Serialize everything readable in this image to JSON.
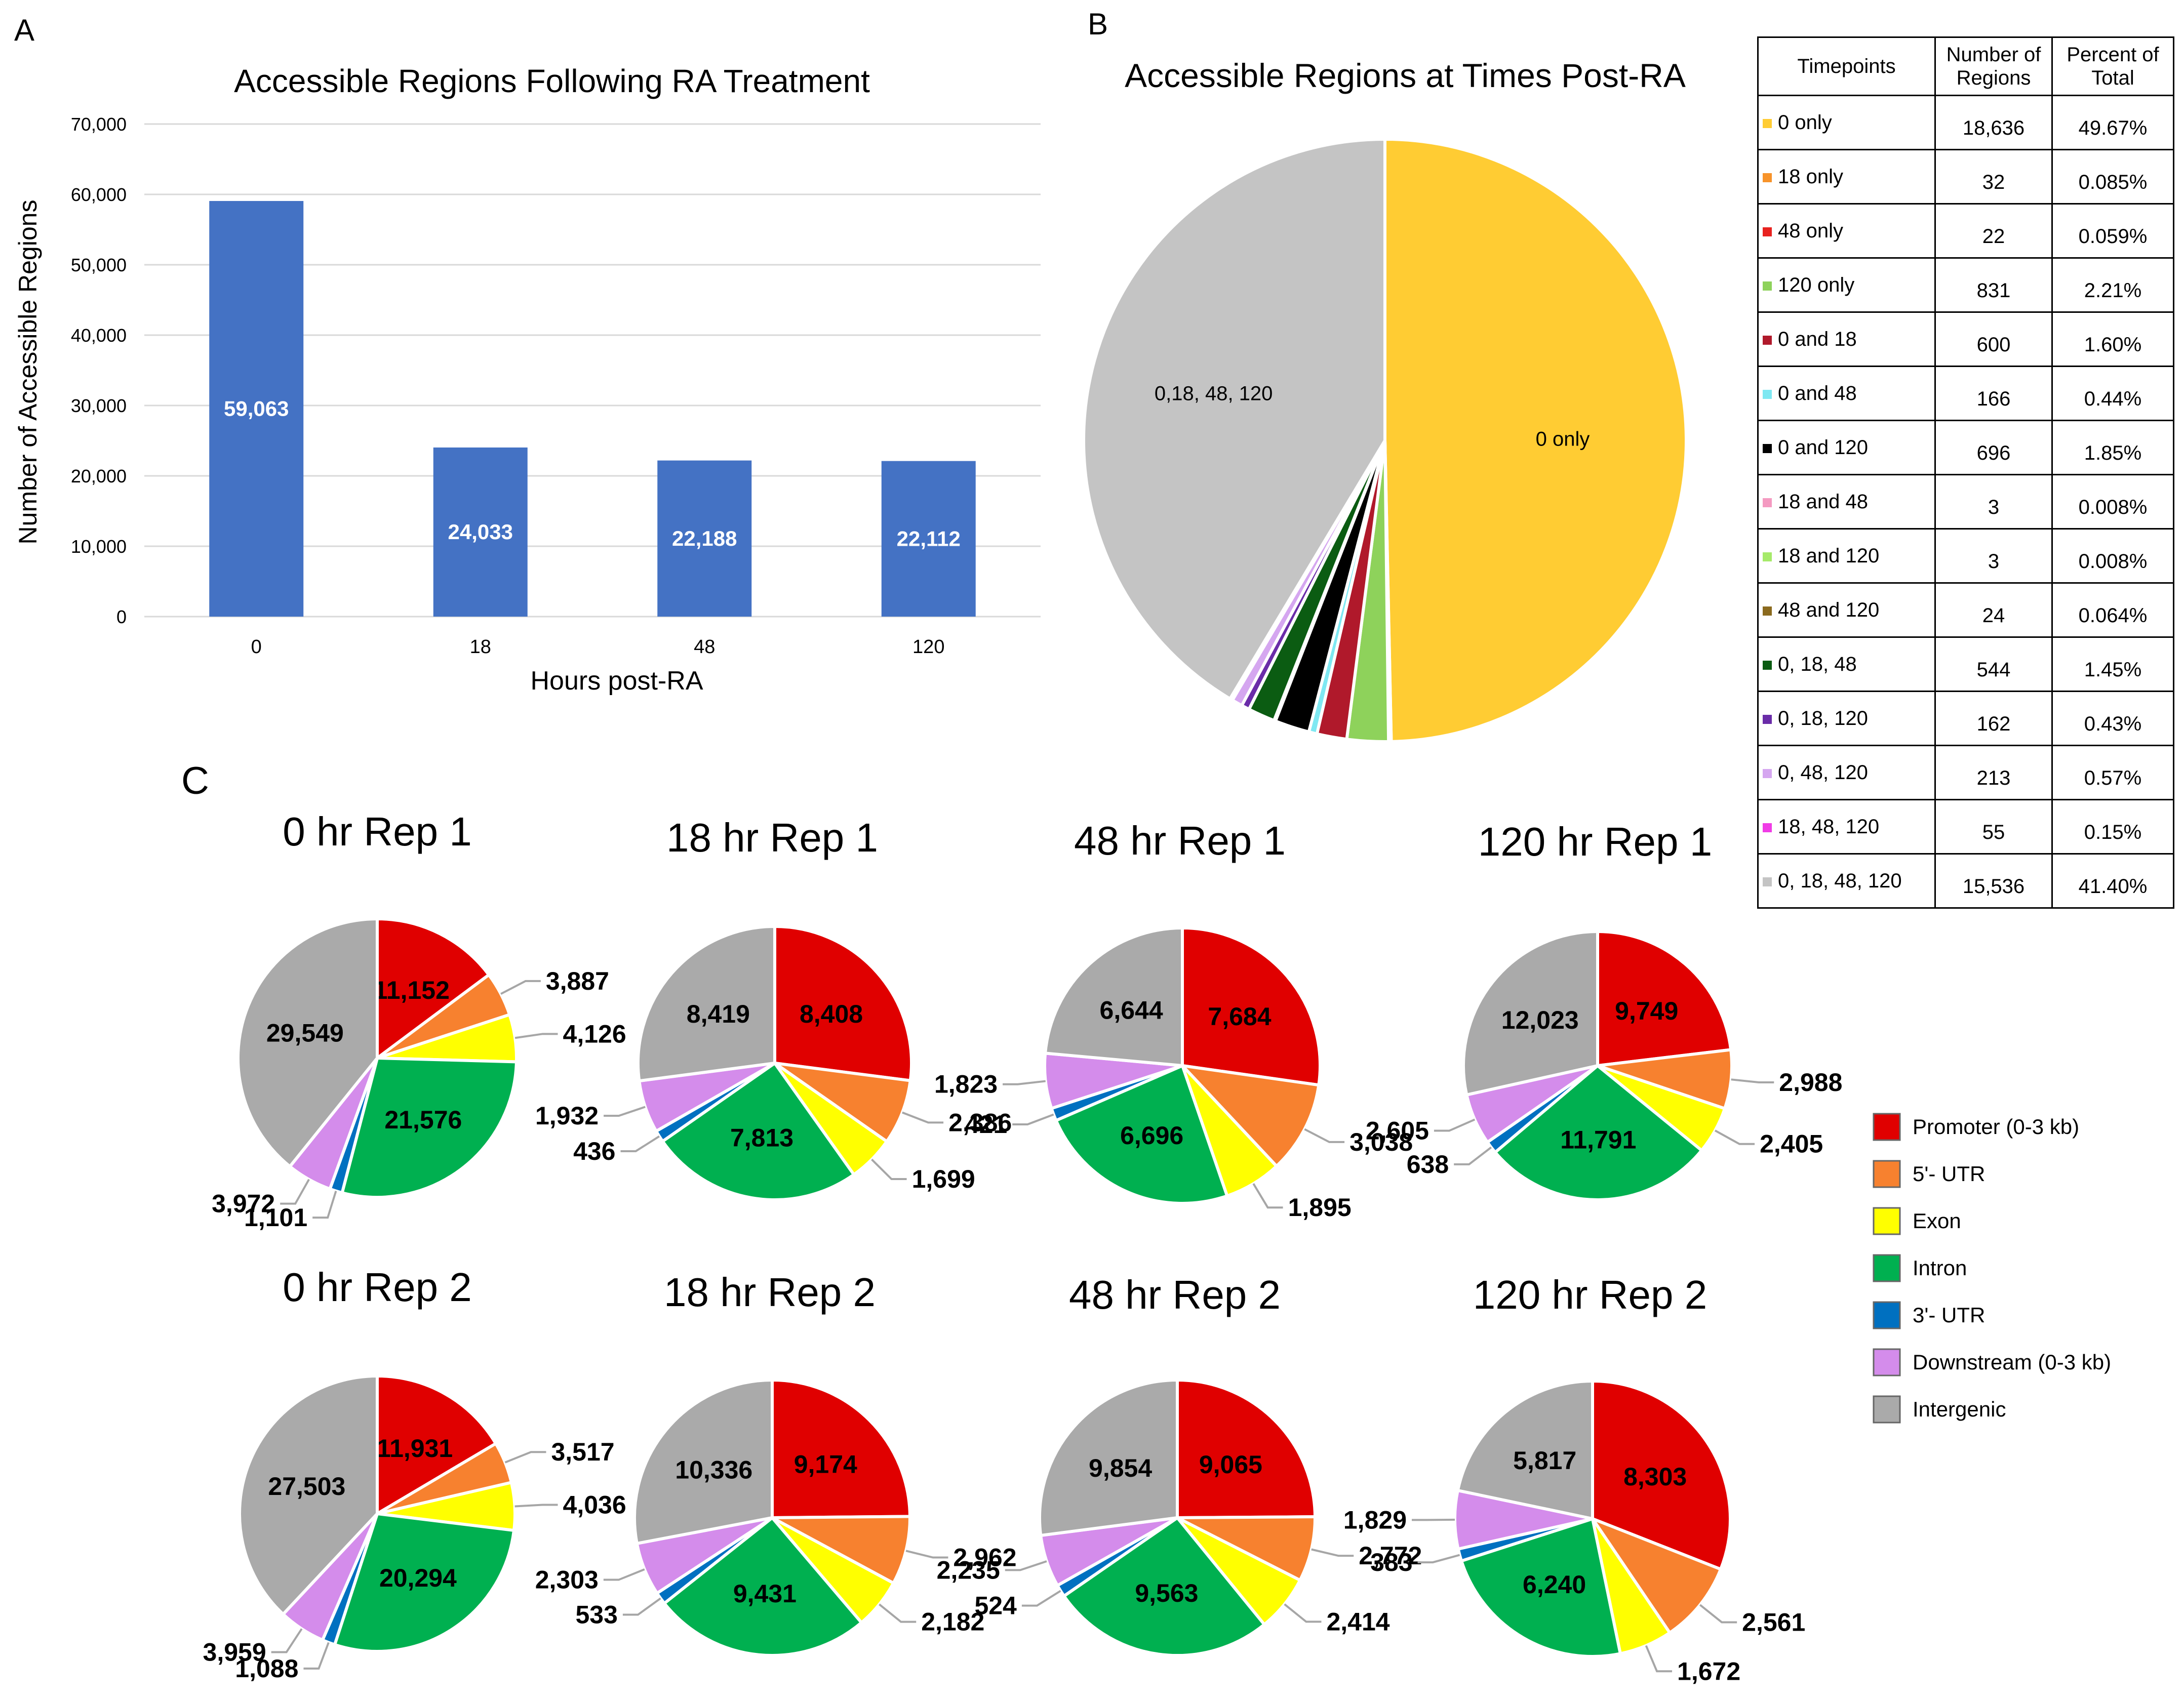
{
  "panels": {
    "a": "A",
    "b": "B",
    "c": "C"
  },
  "chart_data": [
    {
      "type": "bar",
      "title": "Accessible Regions Following RA Treatment",
      "xlabel": "Hours post-RA",
      "ylabel": "Number of Accessible Regions",
      "categories": [
        "0",
        "18",
        "48",
        "120"
      ],
      "values": [
        59063,
        24033,
        22188,
        22112
      ],
      "value_labels": [
        "59,063",
        "24,033",
        "22,188",
        "22,112"
      ],
      "ylim": [
        0,
        70000
      ],
      "yticks": [
        0,
        10000,
        20000,
        30000,
        40000,
        50000,
        60000,
        70000
      ],
      "ytick_labels": [
        "0",
        "10,000",
        "20,000",
        "30,000",
        "40,000",
        "50,000",
        "60,000",
        "70,000"
      ],
      "bar_color": "#4472C4",
      "grid": true
    },
    {
      "type": "pie",
      "title": "Accessible Regions at Times Post-RA",
      "slices": [
        {
          "label": "0 only",
          "value": 18636,
          "color": "#FFCC33",
          "shown": "0 only"
        },
        {
          "label": "18 only",
          "value": 32,
          "color": "#F7932A",
          "shown": ""
        },
        {
          "label": "48 only",
          "value": 22,
          "color": "#E8221F",
          "shown": ""
        },
        {
          "label": "120 only",
          "value": 831,
          "color": "#8ED25B",
          "shown": ""
        },
        {
          "label": "0 and 18",
          "value": 600,
          "color": "#B0192B",
          "shown": ""
        },
        {
          "label": "0 and 48",
          "value": 166,
          "color": "#7EE8F2",
          "shown": ""
        },
        {
          "label": "0 and 120",
          "value": 696,
          "color": "#000000",
          "shown": ""
        },
        {
          "label": "18 and 48",
          "value": 3,
          "color": "#F49AC1",
          "shown": ""
        },
        {
          "label": "18 and 120",
          "value": 3,
          "color": "#A6EA6A",
          "shown": ""
        },
        {
          "label": "48 and 120",
          "value": 24,
          "color": "#8B6A1E",
          "shown": ""
        },
        {
          "label": "0, 18, 48",
          "value": 544,
          "color": "#0B5C12",
          "shown": ""
        },
        {
          "label": "0, 18, 120",
          "value": 162,
          "color": "#6A2CA8",
          "shown": ""
        },
        {
          "label": "0, 48, 120",
          "value": 213,
          "color": "#D5A6F0",
          "shown": ""
        },
        {
          "label": "18, 48, 120",
          "value": 55,
          "color": "#F03CE6",
          "shown": ""
        },
        {
          "label": "0, 18, 48, 120",
          "value": 15536,
          "color": "#C4C4C4",
          "shown": "0,18, 48, 120"
        }
      ]
    },
    {
      "type": "pie",
      "subplots": [
        {
          "title": "0 hr Rep 1",
          "values": [
            11152,
            3887,
            4126,
            21576,
            1101,
            3972,
            29549
          ],
          "labels": [
            "11,152",
            "3,887",
            "4,126",
            "21,576",
            "1,101",
            "3,972",
            "29,549"
          ]
        },
        {
          "title": "18 hr Rep 1",
          "values": [
            8408,
            2386,
            1699,
            7813,
            436,
            1932,
            8419
          ],
          "labels": [
            "8,408",
            "2,386",
            "1,699",
            "7,813",
            "436",
            "1,932",
            "8,419"
          ]
        },
        {
          "title": "48 hr Rep 1",
          "values": [
            7684,
            3038,
            1895,
            6696,
            421,
            1823,
            6644
          ],
          "labels": [
            "7,684",
            "3,038",
            "1,895",
            "6,696",
            "421",
            "1,823",
            "6,644"
          ]
        },
        {
          "title": "120 hr Rep 1",
          "values": [
            9749,
            2988,
            2405,
            11791,
            638,
            2605,
            12023
          ],
          "labels": [
            "9,749",
            "2,988",
            "2,405",
            "11,791",
            "638",
            "2,605",
            "12,023"
          ]
        },
        {
          "title": "0 hr Rep 2",
          "values": [
            11931,
            3517,
            4036,
            20294,
            1088,
            3959,
            27503
          ],
          "labels": [
            "11,931",
            "3,517",
            "4,036",
            "20,294",
            "1,088",
            "3,959",
            "27,503"
          ]
        },
        {
          "title": "18 hr Rep 2",
          "values": [
            9174,
            2962,
            2182,
            9431,
            533,
            2303,
            10336
          ],
          "labels": [
            "9,174",
            "2,962",
            "2,182",
            "9,431",
            "533",
            "2,303",
            "10,336"
          ]
        },
        {
          "title": "48 hr Rep 2",
          "values": [
            9065,
            2772,
            2414,
            9563,
            524,
            2235,
            9854
          ],
          "labels": [
            "9,065",
            "2,772",
            "2,414",
            "9,563",
            "524",
            "2,235",
            "9,854"
          ]
        },
        {
          "title": "120 hr Rep 2",
          "values": [
            8303,
            2561,
            1672,
            6240,
            383,
            1829,
            5817
          ],
          "labels": [
            "8,303",
            "2,561",
            "1,672",
            "6,240",
            "383",
            "1,829",
            "5,817"
          ]
        }
      ],
      "legend": [
        {
          "label": "Promoter (0-3 kb)",
          "color": "#E00000"
        },
        {
          "label": "5'- UTR",
          "color": "#F7812F"
        },
        {
          "label": "Exon",
          "color": "#FFFF00"
        },
        {
          "label": "Intron",
          "color": "#00B050"
        },
        {
          "label": "3'- UTR",
          "color": "#0070C0"
        },
        {
          "label": "Downstream (0-3 kb)",
          "color": "#D48CEB"
        },
        {
          "label": "Intergenic",
          "color": "#AAAAAA"
        }
      ]
    }
  ],
  "table": {
    "headers": [
      "Timepoints",
      "Number of Regions",
      "Percent of Total"
    ],
    "rows": [
      {
        "label": "0 only",
        "count": "18,636",
        "percent": "49.67%",
        "color": "#FFCC33"
      },
      {
        "label": "18 only",
        "count": "32",
        "percent": "0.085%",
        "color": "#F7932A"
      },
      {
        "label": "48 only",
        "count": "22",
        "percent": "0.059%",
        "color": "#E8221F"
      },
      {
        "label": "120 only",
        "count": "831",
        "percent": "2.21%",
        "color": "#8ED25B"
      },
      {
        "label": "0 and 18",
        "count": "600",
        "percent": "1.60%",
        "color": "#B0192B"
      },
      {
        "label": "0 and 48",
        "count": "166",
        "percent": "0.44%",
        "color": "#7EE8F2"
      },
      {
        "label": "0 and 120",
        "count": "696",
        "percent": "1.85%",
        "color": "#000000"
      },
      {
        "label": "18 and 48",
        "count": "3",
        "percent": "0.008%",
        "color": "#F49AC1"
      },
      {
        "label": "18 and 120",
        "count": "3",
        "percent": "0.008%",
        "color": "#A6EA6A"
      },
      {
        "label": "48 and 120",
        "count": "24",
        "percent": "0.064%",
        "color": "#8B6A1E"
      },
      {
        "label": "0, 18, 48",
        "count": "544",
        "percent": "1.45%",
        "color": "#0B5C12"
      },
      {
        "label": "0, 18, 120",
        "count": "162",
        "percent": "0.43%",
        "color": "#6A2CA8"
      },
      {
        "label": "0, 48, 120",
        "count": "213",
        "percent": "0.57%",
        "color": "#D5A6F0"
      },
      {
        "label": "18, 48, 120",
        "count": "55",
        "percent": "0.15%",
        "color": "#F03CE6"
      },
      {
        "label": "0, 18, 48, 120",
        "count": "15,536",
        "percent": "41.40%",
        "color": "#C4C4C4"
      }
    ]
  }
}
